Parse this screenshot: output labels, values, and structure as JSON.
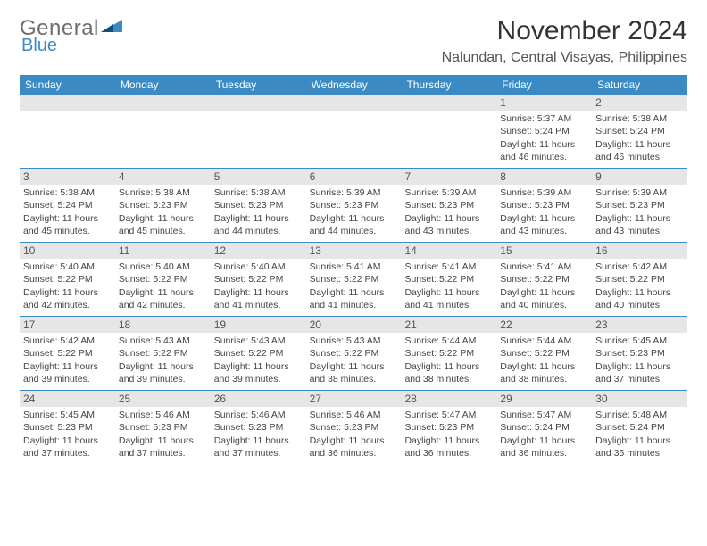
{
  "logo": {
    "text_main": "General",
    "text_sub": "Blue",
    "tri_color": "#3b8ac4",
    "main_color": "#6d6d6d"
  },
  "header": {
    "month_title": "November 2024",
    "location": "Nalundan, Central Visayas, Philippines"
  },
  "colors": {
    "header_bar": "#3b8ac4",
    "daynum_bg": "#e6e6e6",
    "week_divider": "#3b8ac4",
    "text": "#444444"
  },
  "weekdays": [
    "Sunday",
    "Monday",
    "Tuesday",
    "Wednesday",
    "Thursday",
    "Friday",
    "Saturday"
  ],
  "weeks": [
    [
      null,
      null,
      null,
      null,
      null,
      {
        "n": "1",
        "sunrise": "Sunrise: 5:37 AM",
        "sunset": "Sunset: 5:24 PM",
        "day1": "Daylight: 11 hours",
        "day2": "and 46 minutes."
      },
      {
        "n": "2",
        "sunrise": "Sunrise: 5:38 AM",
        "sunset": "Sunset: 5:24 PM",
        "day1": "Daylight: 11 hours",
        "day2": "and 46 minutes."
      }
    ],
    [
      {
        "n": "3",
        "sunrise": "Sunrise: 5:38 AM",
        "sunset": "Sunset: 5:24 PM",
        "day1": "Daylight: 11 hours",
        "day2": "and 45 minutes."
      },
      {
        "n": "4",
        "sunrise": "Sunrise: 5:38 AM",
        "sunset": "Sunset: 5:23 PM",
        "day1": "Daylight: 11 hours",
        "day2": "and 45 minutes."
      },
      {
        "n": "5",
        "sunrise": "Sunrise: 5:38 AM",
        "sunset": "Sunset: 5:23 PM",
        "day1": "Daylight: 11 hours",
        "day2": "and 44 minutes."
      },
      {
        "n": "6",
        "sunrise": "Sunrise: 5:39 AM",
        "sunset": "Sunset: 5:23 PM",
        "day1": "Daylight: 11 hours",
        "day2": "and 44 minutes."
      },
      {
        "n": "7",
        "sunrise": "Sunrise: 5:39 AM",
        "sunset": "Sunset: 5:23 PM",
        "day1": "Daylight: 11 hours",
        "day2": "and 43 minutes."
      },
      {
        "n": "8",
        "sunrise": "Sunrise: 5:39 AM",
        "sunset": "Sunset: 5:23 PM",
        "day1": "Daylight: 11 hours",
        "day2": "and 43 minutes."
      },
      {
        "n": "9",
        "sunrise": "Sunrise: 5:39 AM",
        "sunset": "Sunset: 5:23 PM",
        "day1": "Daylight: 11 hours",
        "day2": "and 43 minutes."
      }
    ],
    [
      {
        "n": "10",
        "sunrise": "Sunrise: 5:40 AM",
        "sunset": "Sunset: 5:22 PM",
        "day1": "Daylight: 11 hours",
        "day2": "and 42 minutes."
      },
      {
        "n": "11",
        "sunrise": "Sunrise: 5:40 AM",
        "sunset": "Sunset: 5:22 PM",
        "day1": "Daylight: 11 hours",
        "day2": "and 42 minutes."
      },
      {
        "n": "12",
        "sunrise": "Sunrise: 5:40 AM",
        "sunset": "Sunset: 5:22 PM",
        "day1": "Daylight: 11 hours",
        "day2": "and 41 minutes."
      },
      {
        "n": "13",
        "sunrise": "Sunrise: 5:41 AM",
        "sunset": "Sunset: 5:22 PM",
        "day1": "Daylight: 11 hours",
        "day2": "and 41 minutes."
      },
      {
        "n": "14",
        "sunrise": "Sunrise: 5:41 AM",
        "sunset": "Sunset: 5:22 PM",
        "day1": "Daylight: 11 hours",
        "day2": "and 41 minutes."
      },
      {
        "n": "15",
        "sunrise": "Sunrise: 5:41 AM",
        "sunset": "Sunset: 5:22 PM",
        "day1": "Daylight: 11 hours",
        "day2": "and 40 minutes."
      },
      {
        "n": "16",
        "sunrise": "Sunrise: 5:42 AM",
        "sunset": "Sunset: 5:22 PM",
        "day1": "Daylight: 11 hours",
        "day2": "and 40 minutes."
      }
    ],
    [
      {
        "n": "17",
        "sunrise": "Sunrise: 5:42 AM",
        "sunset": "Sunset: 5:22 PM",
        "day1": "Daylight: 11 hours",
        "day2": "and 39 minutes."
      },
      {
        "n": "18",
        "sunrise": "Sunrise: 5:43 AM",
        "sunset": "Sunset: 5:22 PM",
        "day1": "Daylight: 11 hours",
        "day2": "and 39 minutes."
      },
      {
        "n": "19",
        "sunrise": "Sunrise: 5:43 AM",
        "sunset": "Sunset: 5:22 PM",
        "day1": "Daylight: 11 hours",
        "day2": "and 39 minutes."
      },
      {
        "n": "20",
        "sunrise": "Sunrise: 5:43 AM",
        "sunset": "Sunset: 5:22 PM",
        "day1": "Daylight: 11 hours",
        "day2": "and 38 minutes."
      },
      {
        "n": "21",
        "sunrise": "Sunrise: 5:44 AM",
        "sunset": "Sunset: 5:22 PM",
        "day1": "Daylight: 11 hours",
        "day2": "and 38 minutes."
      },
      {
        "n": "22",
        "sunrise": "Sunrise: 5:44 AM",
        "sunset": "Sunset: 5:22 PM",
        "day1": "Daylight: 11 hours",
        "day2": "and 38 minutes."
      },
      {
        "n": "23",
        "sunrise": "Sunrise: 5:45 AM",
        "sunset": "Sunset: 5:23 PM",
        "day1": "Daylight: 11 hours",
        "day2": "and 37 minutes."
      }
    ],
    [
      {
        "n": "24",
        "sunrise": "Sunrise: 5:45 AM",
        "sunset": "Sunset: 5:23 PM",
        "day1": "Daylight: 11 hours",
        "day2": "and 37 minutes."
      },
      {
        "n": "25",
        "sunrise": "Sunrise: 5:46 AM",
        "sunset": "Sunset: 5:23 PM",
        "day1": "Daylight: 11 hours",
        "day2": "and 37 minutes."
      },
      {
        "n": "26",
        "sunrise": "Sunrise: 5:46 AM",
        "sunset": "Sunset: 5:23 PM",
        "day1": "Daylight: 11 hours",
        "day2": "and 37 minutes."
      },
      {
        "n": "27",
        "sunrise": "Sunrise: 5:46 AM",
        "sunset": "Sunset: 5:23 PM",
        "day1": "Daylight: 11 hours",
        "day2": "and 36 minutes."
      },
      {
        "n": "28",
        "sunrise": "Sunrise: 5:47 AM",
        "sunset": "Sunset: 5:23 PM",
        "day1": "Daylight: 11 hours",
        "day2": "and 36 minutes."
      },
      {
        "n": "29",
        "sunrise": "Sunrise: 5:47 AM",
        "sunset": "Sunset: 5:24 PM",
        "day1": "Daylight: 11 hours",
        "day2": "and 36 minutes."
      },
      {
        "n": "30",
        "sunrise": "Sunrise: 5:48 AM",
        "sunset": "Sunset: 5:24 PM",
        "day1": "Daylight: 11 hours",
        "day2": "and 35 minutes."
      }
    ]
  ]
}
